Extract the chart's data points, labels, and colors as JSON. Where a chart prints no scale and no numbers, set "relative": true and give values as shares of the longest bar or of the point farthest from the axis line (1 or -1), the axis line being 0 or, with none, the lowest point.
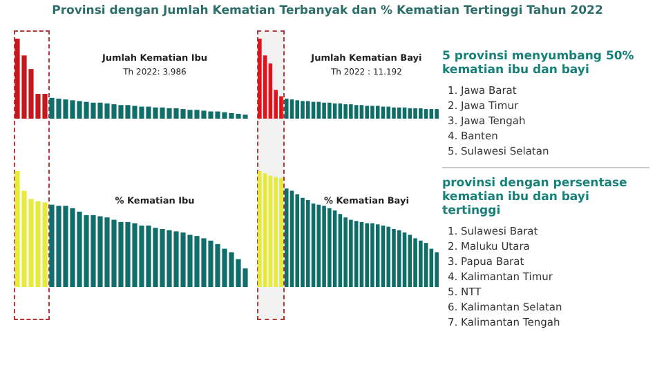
{
  "chart_data": [
    {
      "type": "bar",
      "title": "Jumlah Kematian Ibu",
      "annotations": [
        "Th 2022: 3.986"
      ],
      "relative": true,
      "categories": [
        null,
        null,
        null,
        null,
        null,
        null,
        null,
        null,
        null,
        null,
        null,
        null,
        null,
        null,
        null,
        null,
        null,
        null,
        null,
        null,
        null,
        null,
        null,
        null,
        null,
        null,
        null,
        null,
        null,
        null,
        null,
        null,
        null,
        null
      ],
      "values": [
        1,
        0.79,
        0.62,
        0.31,
        0.31,
        0.26,
        0.25,
        0.24,
        0.23,
        0.22,
        0.21,
        0.2,
        0.2,
        0.19,
        0.18,
        0.17,
        0.17,
        0.16,
        0.15,
        0.15,
        0.14,
        0.14,
        0.13,
        0.13,
        0.12,
        0.11,
        0.11,
        0.1,
        0.09,
        0.09,
        0.08,
        0.07,
        0.06,
        0.05
      ],
      "colors": [
        "#c8161d",
        "#c8161d",
        "#c8161d",
        "#c8161d",
        "#c8161d",
        "#0f6e6a",
        "#0f6e6a",
        "#0f6e6a",
        "#0f6e6a",
        "#0f6e6a",
        "#0f6e6a",
        "#0f6e6a",
        "#0f6e6a",
        "#0f6e6a",
        "#0f6e6a",
        "#0f6e6a",
        "#0f6e6a",
        "#0f6e6a",
        "#0f6e6a",
        "#0f6e6a",
        "#0f6e6a",
        "#0f6e6a",
        "#0f6e6a",
        "#0f6e6a",
        "#0f6e6a",
        "#0f6e6a",
        "#0f6e6a",
        "#0f6e6a",
        "#0f6e6a",
        "#0f6e6a",
        "#0f6e6a",
        "#0f6e6a",
        "#0f6e6a",
        "#0f6e6a"
      ]
    },
    {
      "type": "bar",
      "title": "Jumlah Kematian Bayi",
      "annotations": [
        "Th 2022 : 11.192"
      ],
      "relative": true,
      "categories": [
        null,
        null,
        null,
        null,
        null,
        null,
        null,
        null,
        null,
        null,
        null,
        null,
        null,
        null,
        null,
        null,
        null,
        null,
        null,
        null,
        null,
        null,
        null,
        null,
        null,
        null,
        null,
        null,
        null,
        null,
        null,
        null,
        null,
        null
      ],
      "values": [
        1,
        0.79,
        0.69,
        0.36,
        0.28,
        0.25,
        0.24,
        0.23,
        0.22,
        0.22,
        0.21,
        0.21,
        0.2,
        0.2,
        0.19,
        0.19,
        0.18,
        0.18,
        0.17,
        0.17,
        0.16,
        0.16,
        0.16,
        0.15,
        0.15,
        0.14,
        0.14,
        0.14,
        0.13,
        0.13,
        0.13,
        0.12,
        0.12,
        0.12
      ],
      "colors": [
        "#e0141b",
        "#e0141b",
        "#e0141b",
        "#e0141b",
        "#e0141b",
        "#0f6e6a",
        "#0f6e6a",
        "#0f6e6a",
        "#0f6e6a",
        "#0f6e6a",
        "#0f6e6a",
        "#0f6e6a",
        "#0f6e6a",
        "#0f6e6a",
        "#0f6e6a",
        "#0f6e6a",
        "#0f6e6a",
        "#0f6e6a",
        "#0f6e6a",
        "#0f6e6a",
        "#0f6e6a",
        "#0f6e6a",
        "#0f6e6a",
        "#0f6e6a",
        "#0f6e6a",
        "#0f6e6a",
        "#0f6e6a",
        "#0f6e6a",
        "#0f6e6a",
        "#0f6e6a",
        "#0f6e6a",
        "#0f6e6a",
        "#0f6e6a",
        "#0f6e6a"
      ]
    },
    {
      "type": "bar",
      "title": "% Kematian Ibu",
      "relative": true,
      "categories": [
        null,
        null,
        null,
        null,
        null,
        null,
        null,
        null,
        null,
        null,
        null,
        null,
        null,
        null,
        null,
        null,
        null,
        null,
        null,
        null,
        null,
        null,
        null,
        null,
        null,
        null,
        null,
        null,
        null,
        null,
        null,
        null,
        null,
        null
      ],
      "values": [
        1,
        0.83,
        0.76,
        0.74,
        0.73,
        0.71,
        0.7,
        0.7,
        0.68,
        0.65,
        0.62,
        0.62,
        0.61,
        0.6,
        0.58,
        0.56,
        0.56,
        0.55,
        0.53,
        0.53,
        0.51,
        0.5,
        0.49,
        0.48,
        0.47,
        0.45,
        0.44,
        0.42,
        0.4,
        0.37,
        0.33,
        0.3,
        0.24,
        0.16
      ],
      "colors": [
        "#e6ea3a",
        "#e6ea3a",
        "#e6ea3a",
        "#e6ea3a",
        "#e6ea3a",
        "#0f6e6a",
        "#0f6e6a",
        "#0f6e6a",
        "#0f6e6a",
        "#0f6e6a",
        "#0f6e6a",
        "#0f6e6a",
        "#0f6e6a",
        "#0f6e6a",
        "#0f6e6a",
        "#0f6e6a",
        "#0f6e6a",
        "#0f6e6a",
        "#0f6e6a",
        "#0f6e6a",
        "#0f6e6a",
        "#0f6e6a",
        "#0f6e6a",
        "#0f6e6a",
        "#0f6e6a",
        "#0f6e6a",
        "#0f6e6a",
        "#0f6e6a",
        "#0f6e6a",
        "#0f6e6a",
        "#0f6e6a",
        "#0f6e6a",
        "#0f6e6a",
        "#0f6e6a"
      ]
    },
    {
      "type": "bar",
      "title": "% Kematian Bayi",
      "relative": true,
      "categories": [
        null,
        null,
        null,
        null,
        null,
        null,
        null,
        null,
        null,
        null,
        null,
        null,
        null,
        null,
        null,
        null,
        null,
        null,
        null,
        null,
        null,
        null,
        null,
        null,
        null,
        null,
        null,
        null,
        null,
        null,
        null,
        null,
        null,
        null
      ],
      "values": [
        1,
        0.98,
        0.96,
        0.95,
        0.94,
        0.85,
        0.83,
        0.8,
        0.77,
        0.75,
        0.72,
        0.71,
        0.7,
        0.68,
        0.66,
        0.63,
        0.6,
        0.58,
        0.57,
        0.56,
        0.55,
        0.55,
        0.54,
        0.53,
        0.52,
        0.5,
        0.49,
        0.47,
        0.45,
        0.42,
        0.4,
        0.38,
        0.33,
        0.3
      ],
      "colors": [
        "#e6ea3a",
        "#e6ea3a",
        "#e6ea3a",
        "#e6ea3a",
        "#e6ea3a",
        "#0f6e6a",
        "#0f6e6a",
        "#0f6e6a",
        "#0f6e6a",
        "#0f6e6a",
        "#0f6e6a",
        "#0f6e6a",
        "#0f6e6a",
        "#0f6e6a",
        "#0f6e6a",
        "#0f6e6a",
        "#0f6e6a",
        "#0f6e6a",
        "#0f6e6a",
        "#0f6e6a",
        "#0f6e6a",
        "#0f6e6a",
        "#0f6e6a",
        "#0f6e6a",
        "#0f6e6a",
        "#0f6e6a",
        "#0f6e6a",
        "#0f6e6a",
        "#0f6e6a",
        "#0f6e6a",
        "#0f6e6a",
        "#0f6e6a",
        "#0f6e6a",
        "#0f6e6a"
      ]
    },
    {
      "type": "other",
      "title": "Provinsi dengan Jumlah Kematian Terbanyak dan % Kematian Tertinggi Tahun 2022",
      "annotations": [
        "5 provinsi menyumbang 50% kematian ibu dan bayi",
        "1. Jawa Barat",
        "2. Jawa Timur",
        "3. Jawa Tengah",
        "4. Banten",
        "5. Sulawesi Selatan",
        "provinsi dengan persentase kematian ibu dan bayi tertinggi",
        "1. Sulawesi Barat",
        "2. Maluku Utara",
        "3. Papua Barat",
        "4. Kalimantan Timur",
        "5. NTT",
        "6. Kalimantan Selatan",
        "7. Kalimantan Tengah"
      ]
    }
  ]
}
